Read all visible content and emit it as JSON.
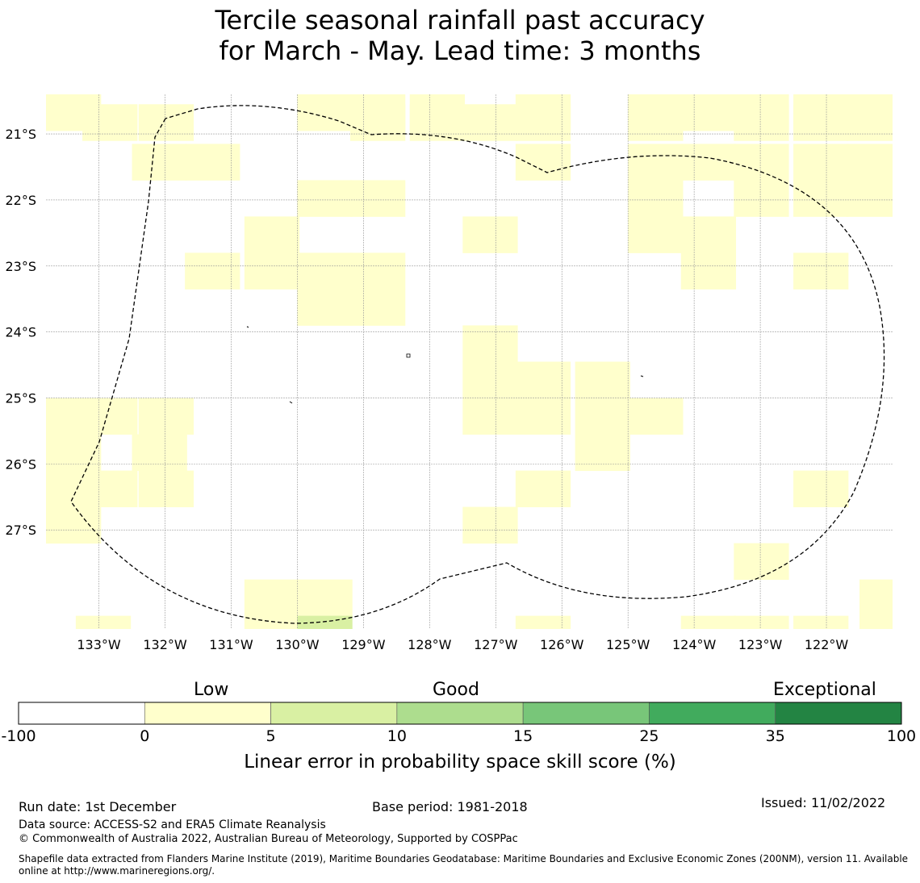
{
  "title": {
    "line1": "Tercile seasonal rainfall past accuracy",
    "line2": "for March - May. Lead time: 3 months"
  },
  "map": {
    "lat_labels": [
      "21°S",
      "22°S",
      "23°S",
      "24°S",
      "25°S",
      "26°S",
      "27°S"
    ],
    "lat_values": [
      -21,
      -22,
      -23,
      -24,
      -25,
      -26,
      -27
    ],
    "lon_labels": [
      "133°W",
      "132°W",
      "131°W",
      "130°W",
      "129°W",
      "128°W",
      "127°W",
      "126°W",
      "125°W",
      "124°W",
      "123°W",
      "122°W"
    ],
    "lon_values": [
      -133,
      -132,
      -131,
      -130,
      -129,
      -128,
      -127,
      -126,
      -125,
      -124,
      -123,
      -122
    ],
    "extent": {
      "lon_min": -133.8,
      "lon_max": -121.0,
      "lat_min": -28.5,
      "lat_max": -20.4
    },
    "cell_size_lon": 0.8333,
    "cell_size_lat": 0.5556,
    "colors": {
      "low": "#ffffcc",
      "good_low": "#d9f0a3",
      "grid": "#999999",
      "boundary": "#000000"
    },
    "cells_low": [
      [
        -133.8,
        -20.4
      ],
      [
        -133.25,
        -20.55
      ],
      [
        -132.4,
        -20.55
      ],
      [
        -132.5,
        -21.15
      ],
      [
        -131.7,
        -21.15
      ],
      [
        -130.0,
        -20.4
      ],
      [
        -129.2,
        -20.4
      ],
      [
        -128.3,
        -20.4
      ],
      [
        -129.2,
        -20.55
      ],
      [
        -128.3,
        -20.55
      ],
      [
        -127.5,
        -20.55
      ],
      [
        -126.7,
        -20.55
      ],
      [
        -126.7,
        -20.4
      ],
      [
        -126.7,
        -21.15
      ],
      [
        -125.0,
        -20.4
      ],
      [
        -124.2,
        -20.4
      ],
      [
        -123.4,
        -20.4
      ],
      [
        -122.5,
        -20.4
      ],
      [
        -121.7,
        -20.4
      ],
      [
        -125.0,
        -20.55
      ],
      [
        -123.4,
        -20.55
      ],
      [
        -122.5,
        -20.55
      ],
      [
        -121.7,
        -20.55
      ],
      [
        -125.0,
        -21.15
      ],
      [
        -124.2,
        -21.15
      ],
      [
        -123.4,
        -21.15
      ],
      [
        -122.5,
        -21.15
      ],
      [
        -121.7,
        -21.15
      ],
      [
        -125.0,
        -21.7
      ],
      [
        -123.4,
        -21.7
      ],
      [
        -122.5,
        -21.7
      ],
      [
        -121.7,
        -21.7
      ],
      [
        -130.0,
        -21.7
      ],
      [
        -129.2,
        -21.7
      ],
      [
        -130.8,
        -22.25
      ],
      [
        -127.5,
        -22.25
      ],
      [
        -125.0,
        -22.25
      ],
      [
        -124.2,
        -22.25
      ],
      [
        -131.7,
        -22.8
      ],
      [
        -130.8,
        -22.8
      ],
      [
        -130.0,
        -22.8
      ],
      [
        -129.2,
        -22.8
      ],
      [
        -124.2,
        -22.8
      ],
      [
        -122.5,
        -22.8
      ],
      [
        -130.0,
        -23.35
      ],
      [
        -129.2,
        -23.35
      ],
      [
        -127.5,
        -23.9
      ],
      [
        -127.5,
        -24.45
      ],
      [
        -126.7,
        -24.45
      ],
      [
        -125.8,
        -24.45
      ],
      [
        -127.5,
        -25.0
      ],
      [
        -126.7,
        -25.0
      ],
      [
        -125.8,
        -25.0
      ],
      [
        -125.0,
        -25.0
      ],
      [
        -125.8,
        -25.55
      ],
      [
        -133.8,
        -25.0
      ],
      [
        -133.25,
        -25.0
      ],
      [
        -132.4,
        -25.0
      ],
      [
        -133.8,
        -25.55
      ],
      [
        -132.5,
        -25.55
      ],
      [
        -133.8,
        -26.1
      ],
      [
        -133.25,
        -26.1
      ],
      [
        -132.4,
        -26.1
      ],
      [
        -133.8,
        -26.65
      ],
      [
        -126.7,
        -26.1
      ],
      [
        -122.5,
        -26.1
      ],
      [
        -127.5,
        -26.65
      ],
      [
        -123.4,
        -27.2
      ],
      [
        -130.8,
        -27.75
      ],
      [
        -130.0,
        -27.75
      ],
      [
        -121.5,
        -27.75
      ],
      [
        -130.8,
        -28.3
      ],
      [
        -121.5,
        -28.3
      ],
      [
        -133.35,
        -28.3
      ],
      [
        -126.7,
        -28.3
      ],
      [
        -124.2,
        -28.3
      ],
      [
        -123.4,
        -28.3
      ],
      [
        -122.5,
        -28.3
      ]
    ],
    "cells_good_low": [
      [
        -130.0,
        -28.3
      ]
    ]
  },
  "colorbar": {
    "headings": {
      "low": "Low",
      "good": "Good",
      "exceptional": "Exceptional"
    },
    "ticks": [
      "-100",
      "0",
      "5",
      "10",
      "15",
      "25",
      "35",
      "100"
    ],
    "colors": [
      "#ffffff",
      "#ffffcc",
      "#d9f0a3",
      "#addd8e",
      "#78c679",
      "#41ab5d",
      "#238443"
    ],
    "label": "Linear error in probability space skill score (%)"
  },
  "footer": {
    "run_date": "Run date: 1st December",
    "base_period": "Base period: 1981-2018",
    "issued": "Issued: 11/02/2022",
    "data_source": "Data source: ACCESS-S2 and ERA5 Climate Reanalysis",
    "copyright": "© Commonwealth of Australia 2022, Australian Bureau of Meteorology, Supported by COSPPac",
    "shapefile_note": "Shapefile data extracted from Flanders Marine Institute (2019), Maritime Boundaries Geodatabase: Maritime Boundaries and Exclusive Economic Zones (200NM), version 11. Available online at http://www.marineregions.org/."
  }
}
